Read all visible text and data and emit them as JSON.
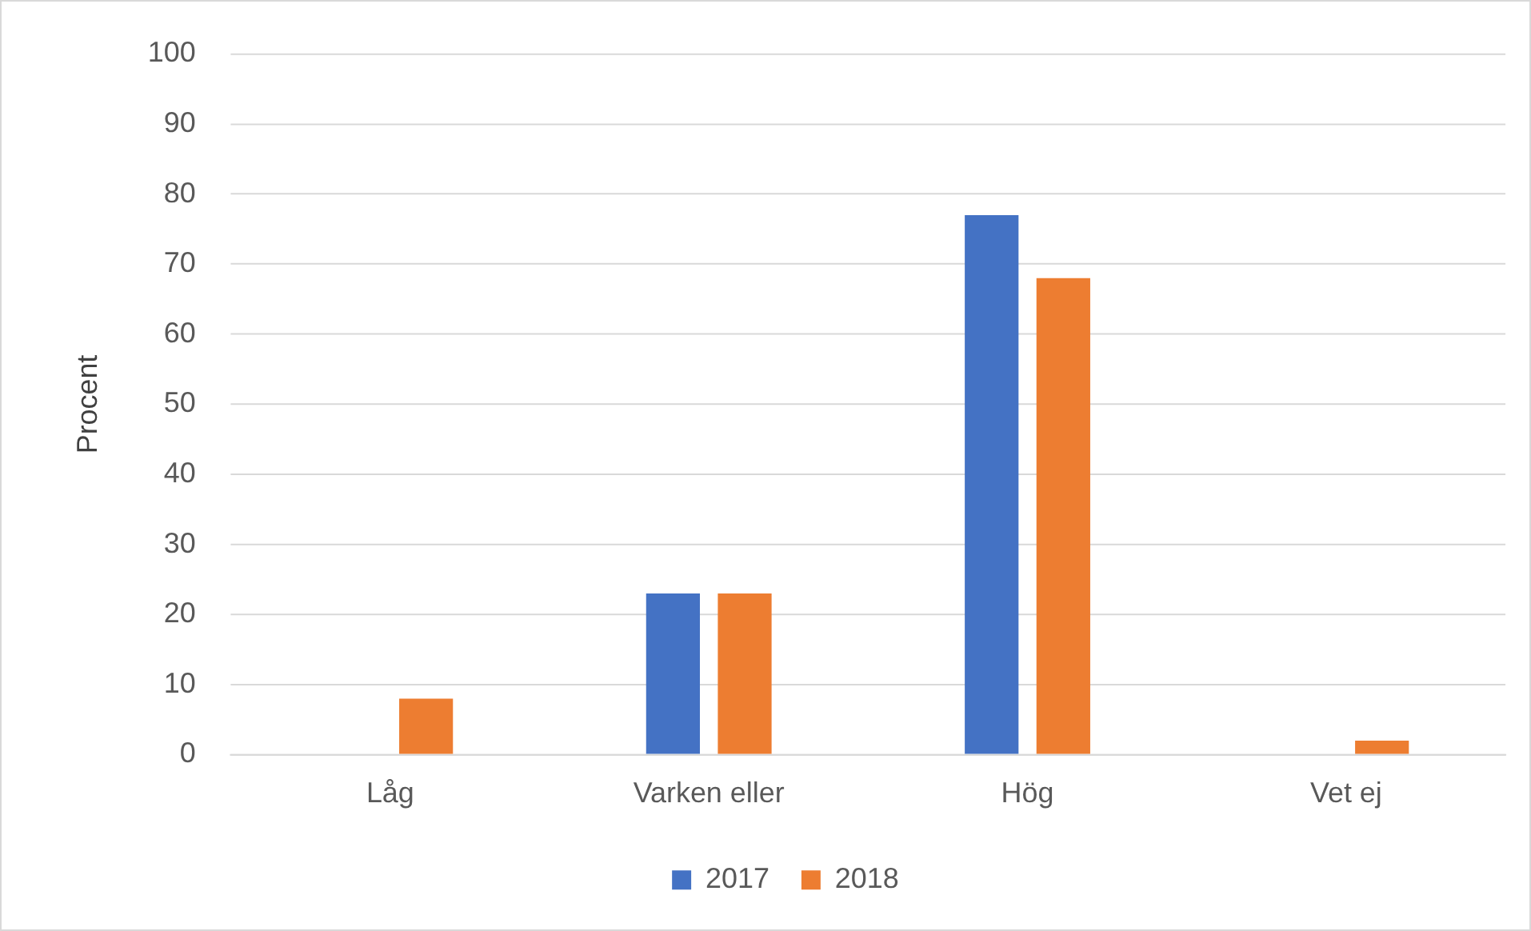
{
  "chart_data": {
    "type": "bar",
    "ylabel": "Procent",
    "categories": [
      "Låg",
      "Varken eller",
      "Hög",
      "Vet ej"
    ],
    "series": [
      {
        "name": "2017",
        "color": "#4472c4",
        "values": [
          0,
          23,
          77,
          0
        ]
      },
      {
        "name": "2018",
        "color": "#ed7d31",
        "values": [
          8,
          23,
          68,
          2
        ]
      }
    ],
    "ylim": [
      0,
      100
    ],
    "yticks": [
      0,
      10,
      20,
      30,
      40,
      50,
      60,
      70,
      80,
      90,
      100
    ],
    "grid": "y",
    "legend": "bottom"
  }
}
